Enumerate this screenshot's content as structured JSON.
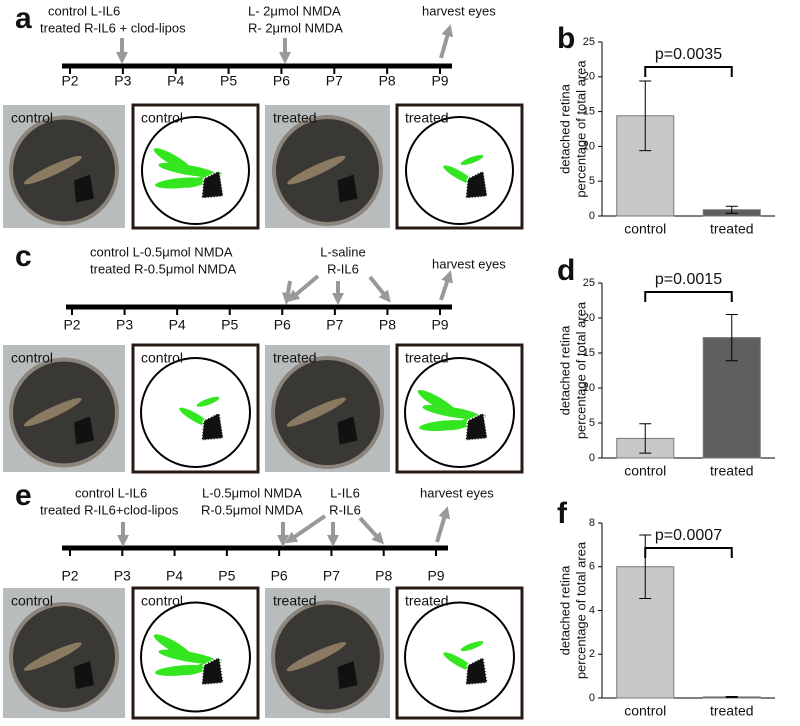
{
  "panels": [
    {
      "label": "a",
      "days": [
        "P2",
        "P3",
        "P4",
        "P5",
        "P6",
        "P7",
        "P8",
        "P9"
      ],
      "notes": [
        [
          "control L-IL6",
          "treated R-IL6 + clod-lipos"
        ],
        [
          "L- 2μmol NMDA",
          "R- 2μmol NMDA"
        ],
        [
          "harvest eyes"
        ]
      ],
      "images": [
        "control",
        "control",
        "treated",
        "treated"
      ]
    },
    {
      "label": "c",
      "days": [
        "P2",
        "P3",
        "P4",
        "P5",
        "P6",
        "P7",
        "P8",
        "P9"
      ],
      "notes": [
        [
          "control L-0.5μmol NMDA",
          "treated R-0.5μmol NMDA"
        ],
        [
          "L-saline",
          "R-IL6"
        ],
        [
          "harvest eyes"
        ]
      ],
      "images": [
        "control",
        "control",
        "treated",
        "treated"
      ]
    },
    {
      "label": "e",
      "days": [
        "P2",
        "P3",
        "P4",
        "P5",
        "P6",
        "P7",
        "P8",
        "P9"
      ],
      "notes": [
        [
          "control  L-IL6",
          "treated R-IL6+clod-lipos"
        ],
        [
          "L-0.5μmol NMDA",
          "R-0.5μmol NMDA"
        ],
        [
          "L-IL6",
          "R-IL6"
        ],
        [
          "harvest eyes"
        ]
      ],
      "images": [
        "control",
        "control",
        "treated",
        "treated"
      ]
    }
  ],
  "chart_data": [
    {
      "type": "bar",
      "panel_label": "b",
      "y_label": [
        "detached retina",
        "percentage of total area"
      ],
      "annotation": "p=0.0035",
      "categories": [
        "control",
        "treated"
      ],
      "values": [
        14.4,
        0.9
      ],
      "errors": [
        5,
        0.5
      ],
      "colors": [
        "#c8c8c8",
        "#5f5f5f"
      ],
      "ylim": [
        0,
        25
      ],
      "yticks": [
        0,
        5,
        10,
        15,
        20,
        25
      ]
    },
    {
      "type": "bar",
      "panel_label": "d",
      "y_label": [
        "detached retina",
        "percentage of total area"
      ],
      "annotation": "p=0.0015",
      "categories": [
        "control",
        "treated"
      ],
      "values": [
        2.8,
        17.2
      ],
      "errors": [
        2.1,
        3.3
      ],
      "colors": [
        "#c8c8c8",
        "#5f5f5f"
      ],
      "ylim": [
        0,
        25
      ],
      "yticks": [
        0,
        5,
        10,
        15,
        20,
        25
      ]
    },
    {
      "type": "bar",
      "panel_label": "f",
      "y_label": [
        "detached retina",
        "percentage of total area"
      ],
      "annotation": "p=0.0007",
      "categories": [
        "control",
        "treated"
      ],
      "values": [
        6.0,
        0.05
      ],
      "errors": [
        1.45,
        0.02
      ],
      "colors": [
        "#c8c8c8",
        "#5f5f5f"
      ],
      "ylim": [
        0,
        8
      ],
      "yticks": [
        0,
        2,
        4,
        6,
        8
      ]
    }
  ]
}
